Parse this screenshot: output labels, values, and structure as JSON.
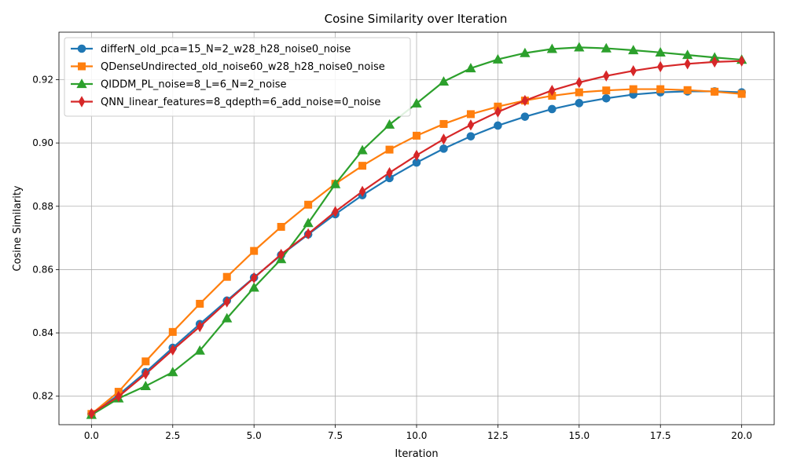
{
  "chart_data": {
    "type": "line",
    "title": "Cosine Similarity over Iteration",
    "xlabel": "Iteration",
    "ylabel": "Cosine Similarity",
    "xlim": [
      -1.0,
      21.0
    ],
    "ylim": [
      0.811,
      0.935
    ],
    "xticks": [
      0.0,
      2.5,
      5.0,
      7.5,
      10.0,
      12.5,
      15.0,
      17.5,
      20.0
    ],
    "xtick_labels": [
      "0.0",
      "2.5",
      "5.0",
      "7.5",
      "10.0",
      "12.5",
      "15.0",
      "17.5",
      "20.0"
    ],
    "yticks": [
      0.82,
      0.84,
      0.86,
      0.88,
      0.9,
      0.92
    ],
    "ytick_labels": [
      "0.82",
      "0.84",
      "0.86",
      "0.88",
      "0.90",
      "0.92"
    ],
    "grid": true,
    "legend_position": "top-left",
    "x": [
      0.0,
      0.8333,
      1.6667,
      2.5,
      3.3333,
      4.1667,
      5.0,
      5.8333,
      6.6667,
      7.5,
      8.3333,
      9.1667,
      10.0,
      10.8333,
      11.6667,
      12.5,
      13.3333,
      14.1667,
      15.0,
      15.8333,
      16.6667,
      17.5,
      18.3333,
      19.1667,
      20.0
    ],
    "series": [
      {
        "name": "differN_old_pca=15_N=2_w28_h28_noise0_noise",
        "color": "#1f77b4",
        "marker": "circle",
        "values": [
          0.8144,
          0.8204,
          0.8276,
          0.8353,
          0.8428,
          0.8502,
          0.8575,
          0.8646,
          0.8711,
          0.8775,
          0.8835,
          0.8889,
          0.8938,
          0.8982,
          0.9021,
          0.9055,
          0.9083,
          0.9107,
          0.9126,
          0.9141,
          0.9153,
          0.916,
          0.9163,
          0.9163,
          0.916
        ]
      },
      {
        "name": "QDenseUndirected_old_noise60_w28_h28_noise0_noise",
        "color": "#ff7f0e",
        "marker": "square",
        "values": [
          0.8144,
          0.8214,
          0.831,
          0.8403,
          0.8492,
          0.8577,
          0.8659,
          0.8735,
          0.8805,
          0.8871,
          0.8928,
          0.8979,
          0.9023,
          0.906,
          0.9091,
          0.9115,
          0.9134,
          0.9149,
          0.916,
          0.9166,
          0.917,
          0.917,
          0.9167,
          0.9162,
          0.9155
        ]
      },
      {
        "name": "QIDDM_PL_noise=8_L=6_N=2_noise",
        "color": "#2ca02c",
        "marker": "triangle",
        "values": [
          0.8141,
          0.8193,
          0.8232,
          0.8276,
          0.8344,
          0.8446,
          0.8543,
          0.8633,
          0.8747,
          0.887,
          0.8977,
          0.9058,
          0.9125,
          0.9194,
          0.9236,
          0.9264,
          0.9284,
          0.9297,
          0.9302,
          0.9299,
          0.9293,
          0.9286,
          0.9278,
          0.927,
          0.9263
        ]
      },
      {
        "name": "QNN_linear_features=8_qdepth=6_add_noise=0_noise",
        "color": "#d62728",
        "marker": "diamond",
        "values": [
          0.8145,
          0.8199,
          0.827,
          0.8346,
          0.842,
          0.8498,
          0.8574,
          0.8648,
          0.8713,
          0.8783,
          0.8847,
          0.8906,
          0.8961,
          0.9012,
          0.9057,
          0.9098,
          0.9134,
          0.9166,
          0.9191,
          0.9212,
          0.9228,
          0.9241,
          0.925,
          0.9256,
          0.9259
        ]
      }
    ]
  }
}
